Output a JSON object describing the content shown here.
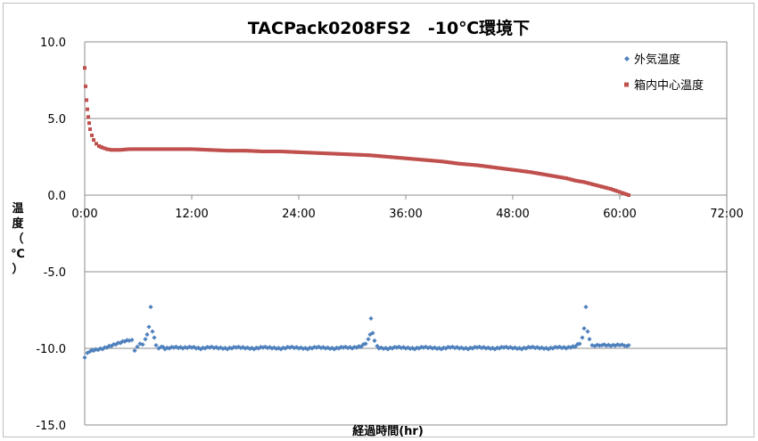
{
  "chart_data": {
    "type": "scatter",
    "title": "TACPack0208FS2　-10℃環境下",
    "xlabel": "経過時間(hr)",
    "ylabel": "温度(℃)",
    "ylabel_chars": [
      "温",
      "度",
      "（",
      "℃",
      "）"
    ],
    "xlim": [
      0,
      72
    ],
    "ylim": [
      -15,
      10
    ],
    "x_ticks": [
      "0:00",
      "12:00",
      "24:00",
      "36:00",
      "48:00",
      "60:00",
      "72:00"
    ],
    "y_ticks": [
      "10.0",
      "5.0",
      "0.0",
      "-5.0",
      "-10.0",
      "-15.0"
    ],
    "grid": true,
    "legend_position": "top-right",
    "series": [
      {
        "name": "外気温度",
        "color": "#4f81bd",
        "marker": "diamond",
        "points": [
          [
            0.0,
            -10.6
          ],
          [
            0.3,
            -10.3
          ],
          [
            0.6,
            -10.2
          ],
          [
            1.0,
            -10.15
          ],
          [
            1.5,
            -10.1
          ],
          [
            2.0,
            -10.05
          ],
          [
            2.5,
            -9.95
          ],
          [
            3.0,
            -9.85
          ],
          [
            3.5,
            -9.75
          ],
          [
            4.0,
            -9.65
          ],
          [
            4.5,
            -9.55
          ],
          [
            5.0,
            -9.5
          ],
          [
            5.3,
            -9.45
          ],
          [
            5.6,
            -10.15
          ],
          [
            5.9,
            -9.9
          ],
          [
            6.2,
            -9.7
          ],
          [
            6.5,
            -9.75
          ],
          [
            6.8,
            -9.4
          ],
          [
            7.0,
            -9.1
          ],
          [
            7.2,
            -8.6
          ],
          [
            7.4,
            -7.3
          ],
          [
            7.6,
            -8.9
          ],
          [
            7.8,
            -9.3
          ],
          [
            8.0,
            -9.8
          ],
          [
            8.3,
            -10.0
          ],
          [
            8.6,
            -9.9
          ],
          [
            9.0,
            -10.05
          ],
          [
            10.0,
            -9.95
          ],
          [
            11.0,
            -10.0
          ],
          [
            12.0,
            -9.95
          ],
          [
            13.0,
            -10.05
          ],
          [
            14.0,
            -9.95
          ],
          [
            15.0,
            -10.0
          ],
          [
            16.0,
            -10.05
          ],
          [
            17.0,
            -9.95
          ],
          [
            18.0,
            -10.0
          ],
          [
            19.0,
            -10.05
          ],
          [
            20.0,
            -9.95
          ],
          [
            21.0,
            -10.0
          ],
          [
            22.0,
            -10.05
          ],
          [
            23.0,
            -9.95
          ],
          [
            24.0,
            -10.0
          ],
          [
            25.0,
            -10.05
          ],
          [
            26.0,
            -9.95
          ],
          [
            27.0,
            -10.0
          ],
          [
            28.0,
            -10.05
          ],
          [
            29.0,
            -9.95
          ],
          [
            30.0,
            -10.0
          ],
          [
            31.0,
            -9.9
          ],
          [
            31.5,
            -9.7
          ],
          [
            31.8,
            -9.4
          ],
          [
            32.0,
            -9.1
          ],
          [
            32.1,
            -8.05
          ],
          [
            32.3,
            -9.0
          ],
          [
            32.5,
            -9.5
          ],
          [
            32.8,
            -9.85
          ],
          [
            33.0,
            -10.0
          ],
          [
            34.0,
            -10.05
          ],
          [
            35.0,
            -9.95
          ],
          [
            36.0,
            -10.0
          ],
          [
            37.0,
            -10.05
          ],
          [
            38.0,
            -9.95
          ],
          [
            39.0,
            -10.0
          ],
          [
            40.0,
            -10.05
          ],
          [
            41.0,
            -9.95
          ],
          [
            42.0,
            -10.0
          ],
          [
            43.0,
            -10.05
          ],
          [
            44.0,
            -9.95
          ],
          [
            45.0,
            -10.0
          ],
          [
            46.0,
            -10.05
          ],
          [
            47.0,
            -9.95
          ],
          [
            48.0,
            -10.0
          ],
          [
            49.0,
            -10.05
          ],
          [
            50.0,
            -9.95
          ],
          [
            51.0,
            -10.0
          ],
          [
            52.0,
            -10.05
          ],
          [
            53.0,
            -9.95
          ],
          [
            54.0,
            -10.0
          ],
          [
            55.0,
            -9.9
          ],
          [
            55.5,
            -9.7
          ],
          [
            55.8,
            -9.3
          ],
          [
            56.0,
            -8.7
          ],
          [
            56.2,
            -7.3
          ],
          [
            56.4,
            -8.9
          ],
          [
            56.6,
            -9.4
          ],
          [
            56.9,
            -9.8
          ],
          [
            57.2,
            -9.85
          ],
          [
            58.0,
            -9.8
          ],
          [
            59.0,
            -9.85
          ],
          [
            60.0,
            -9.8
          ],
          [
            60.8,
            -9.85
          ],
          [
            61.0,
            -9.8
          ]
        ]
      },
      {
        "name": "箱内中心温度",
        "color": "#c0504d",
        "marker": "square",
        "points": [
          [
            0.0,
            8.3
          ],
          [
            0.1,
            7.1
          ],
          [
            0.2,
            6.2
          ],
          [
            0.3,
            5.6
          ],
          [
            0.4,
            5.1
          ],
          [
            0.5,
            4.7
          ],
          [
            0.6,
            4.3
          ],
          [
            0.8,
            3.9
          ],
          [
            1.0,
            3.6
          ],
          [
            1.3,
            3.35
          ],
          [
            1.6,
            3.2
          ],
          [
            2.0,
            3.1
          ],
          [
            2.5,
            3.0
          ],
          [
            3.0,
            2.95
          ],
          [
            4.0,
            2.95
          ],
          [
            5.0,
            3.0
          ],
          [
            6.0,
            3.0
          ],
          [
            8.0,
            3.0
          ],
          [
            10.0,
            3.0
          ],
          [
            12.0,
            3.0
          ],
          [
            14.0,
            2.95
          ],
          [
            16.0,
            2.9
          ],
          [
            18.0,
            2.9
          ],
          [
            20.0,
            2.85
          ],
          [
            22.0,
            2.85
          ],
          [
            24.0,
            2.8
          ],
          [
            26.0,
            2.75
          ],
          [
            28.0,
            2.7
          ],
          [
            30.0,
            2.65
          ],
          [
            32.0,
            2.6
          ],
          [
            34.0,
            2.5
          ],
          [
            36.0,
            2.4
          ],
          [
            38.0,
            2.3
          ],
          [
            40.0,
            2.2
          ],
          [
            42.0,
            2.05
          ],
          [
            44.0,
            1.95
          ],
          [
            46.0,
            1.8
          ],
          [
            48.0,
            1.65
          ],
          [
            50.0,
            1.5
          ],
          [
            52.0,
            1.3
          ],
          [
            54.0,
            1.1
          ],
          [
            55.0,
            0.95
          ],
          [
            56.0,
            0.85
          ],
          [
            57.0,
            0.7
          ],
          [
            58.0,
            0.55
          ],
          [
            59.0,
            0.4
          ],
          [
            60.0,
            0.2
          ],
          [
            60.5,
            0.1
          ],
          [
            61.0,
            0.0
          ]
        ]
      }
    ]
  }
}
